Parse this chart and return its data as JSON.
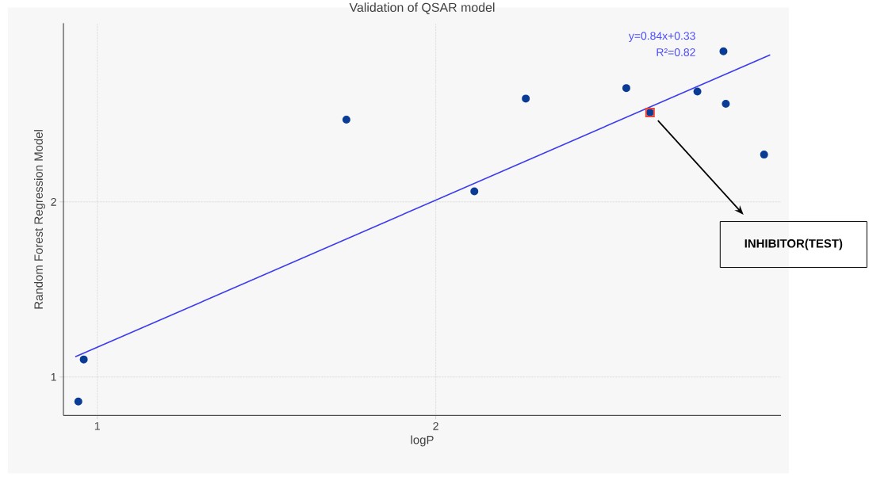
{
  "chart_data": {
    "type": "scatter",
    "title": "Validation of QSAR model",
    "xlabel": "logP",
    "ylabel": "Random Forest Regression Model",
    "xlim": [
      0.9,
      3.02
    ],
    "ylim": [
      0.78,
      3.02
    ],
    "xticks": [
      1,
      2
    ],
    "yticks": [
      1,
      2
    ],
    "grid": true,
    "marker": "circle",
    "series": [
      {
        "color": "#0a3c96",
        "x": [
          0.944,
          0.96,
          1.736,
          2.114,
          2.266,
          2.563,
          2.633,
          2.773,
          2.85,
          2.857,
          2.97
        ],
        "values": [
          0.86,
          1.1,
          2.47,
          2.06,
          2.59,
          2.65,
          2.51,
          2.63,
          2.86,
          2.56,
          2.27
        ]
      },
      {
        "color": "#e8453c",
        "marker": "square",
        "x": [
          2.633
        ],
        "values": [
          2.51
        ]
      },
      {
        "type": "line",
        "color": "#3b3bf0",
        "marker": "none",
        "x": [
          0.935,
          2.988
        ],
        "values": [
          1.115,
          2.84
        ]
      }
    ],
    "annotations": [
      "y=0.84x+0.33",
      "R²=0.82",
      "INHIBITOR(TEST)"
    ]
  }
}
